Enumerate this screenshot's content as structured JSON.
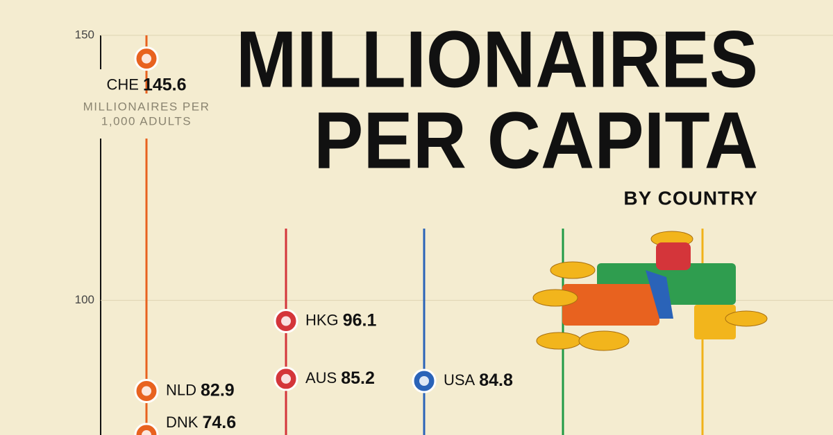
{
  "chart_data": {
    "type": "dot",
    "title": [
      "MILLIONAIRES",
      "PER CAPITA"
    ],
    "subtitle": "BY COUNTRY",
    "unit_label": [
      "MILLIONAIRES PER",
      "1,000 ADULTS"
    ],
    "ylim": [
      75,
      150
    ],
    "yticks": [
      100,
      150
    ],
    "grid": true,
    "series": [
      {
        "color": "#e8621f",
        "labels": [
          "CHE",
          "NLD",
          "DNK"
        ],
        "values": [
          145.6,
          82.9,
          74.6
        ]
      },
      {
        "color": "#d4353a",
        "labels": [
          "HKG",
          "AUS"
        ],
        "values": [
          96.1,
          85.2
        ]
      },
      {
        "color": "#2a63b8",
        "labels": [
          "USA"
        ],
        "values": [
          84.8
        ]
      }
    ]
  }
}
